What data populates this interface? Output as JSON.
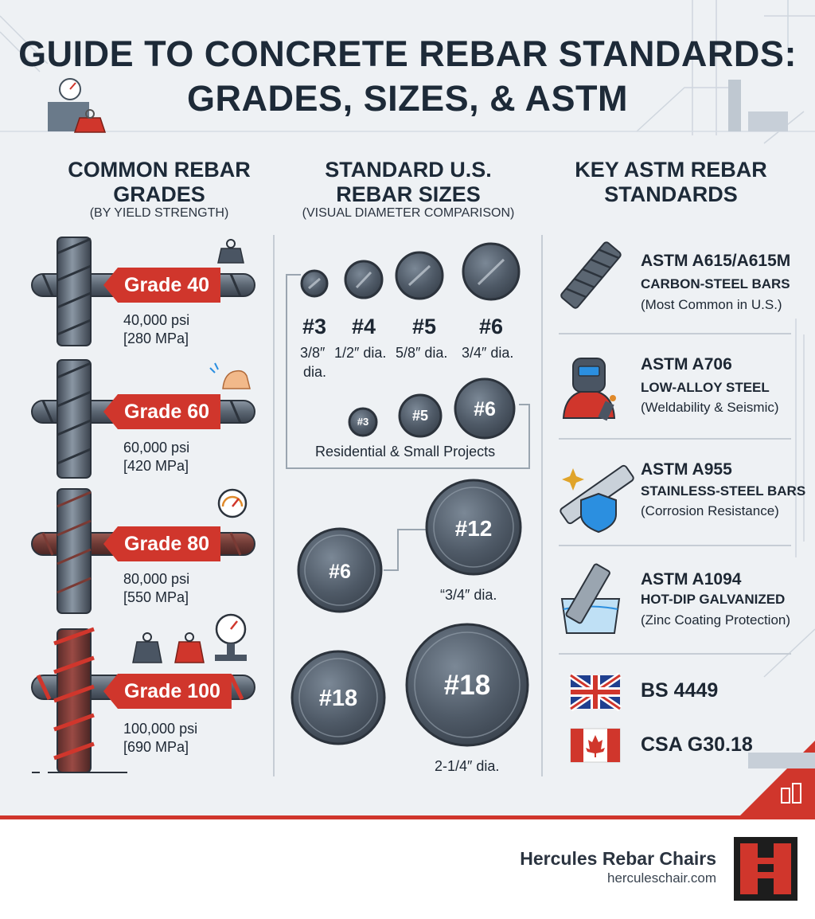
{
  "title": {
    "line1": "GUIDE TO CONCRETE REBAR STANDARDS:",
    "line2": "GRADES, SIZES, & ASTM"
  },
  "grades": {
    "heading_line1": "COMMON REBAR",
    "heading_line2": "GRADES",
    "subheading": "(BY YIELD STRENGTH)",
    "items": [
      {
        "label": "Grade 40",
        "psi": "40,000 psi",
        "mpa": "[280 MPa]"
      },
      {
        "label": "Grade 60",
        "psi": "60,000 psi",
        "mpa": "[420 MPa]"
      },
      {
        "label": "Grade 80",
        "psi": "80,000 psi",
        "mpa": "[550 MPa]"
      },
      {
        "label": "Grade 100",
        "psi": "100,000 psi",
        "mpa": "[690 MPa]"
      }
    ]
  },
  "sizes": {
    "heading_line1": "STANDARD U.S.",
    "heading_line2": "REBAR SIZES",
    "subheading": "(VISUAL DIAMETER COMPARISON)",
    "top_row": [
      {
        "num": "#3",
        "dia": "3/8″",
        "dia2": "dia."
      },
      {
        "num": "#4",
        "dia": "1/2″ dia."
      },
      {
        "num": "#5",
        "dia": "5/8″ dia."
      },
      {
        "num": "#6",
        "dia": "3/4″ dia."
      }
    ],
    "small_circles": [
      "#3",
      "#5",
      "#6"
    ],
    "small_caption": "Residential & Small Projects",
    "mid_left": "#6",
    "mid_right": "#12",
    "mid_caption": "“3/4″ dia.",
    "bottom_left": "#18",
    "bottom_right": "#18",
    "bottom_caption": "2-1/4″ dia."
  },
  "astm": {
    "heading_line1": "KEY ASTM REBAR",
    "heading_line2": "STANDARDS",
    "items": [
      {
        "code": "ASTM A615/A615M",
        "desc": "CARBON-STEEL BARS",
        "note": "(Most Common in U.S.)"
      },
      {
        "code": "ASTM A706",
        "desc": "LOW-ALLOY STEEL",
        "note": "(Weldability & Seismic)"
      },
      {
        "code": "ASTM A955",
        "desc": "STAINLESS-STEEL BARS",
        "note": "(Corrosion Resistance)"
      },
      {
        "code": "ASTM A1094",
        "desc": "HOT-DIP GALVANIZED",
        "note": "(Zinc Coating Protection)"
      }
    ],
    "international": [
      {
        "code": "BS 4449",
        "flag": "uk-flag-icon"
      },
      {
        "code": "CSA G30.18",
        "flag": "canada-flag-icon"
      }
    ]
  },
  "brand": {
    "name": "Hercules Rebar Chairs",
    "url": "herculeschair.com"
  },
  "colors": {
    "accent_red": "#d0362c",
    "steel_dark": "#4a5563",
    "steel_light": "#8a96a3",
    "background": "#eef1f4",
    "text": "#1d2733"
  }
}
